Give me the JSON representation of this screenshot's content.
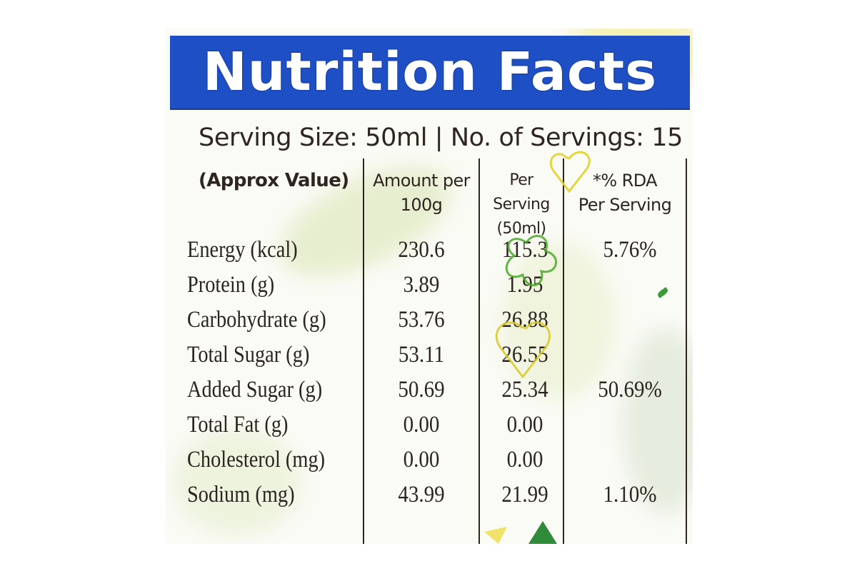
{
  "header": {
    "title": "Nutrition Facts"
  },
  "serving_line": "Serving Size: 50ml | No. of Servings: 15",
  "columns": [
    {
      "line1": "(Approx Value)",
      "line2": ""
    },
    {
      "line1": "Amount per",
      "line2": "100g"
    },
    {
      "line1": "Per Serving",
      "line2": "(50ml)"
    },
    {
      "line1": "*% RDA",
      "line2": "Per Serving"
    }
  ],
  "rows": [
    {
      "name": "Energy (kcal)",
      "per_100g": "230.6",
      "per_serving": "115.3",
      "rda": "5.76%"
    },
    {
      "name": "Protein (g)",
      "per_100g": "3.89",
      "per_serving": "1.95",
      "rda": ""
    },
    {
      "name": "Carbohydrate (g)",
      "per_100g": "53.76",
      "per_serving": "26.88",
      "rda": ""
    },
    {
      "name": "Total Sugar (g)",
      "per_100g": "53.11",
      "per_serving": "26.55",
      "rda": ""
    },
    {
      "name": "Added Sugar (g)",
      "per_100g": "50.69",
      "per_serving": "25.34",
      "rda": "50.69%"
    },
    {
      "name": "Total Fat (g)",
      "per_100g": "0.00",
      "per_serving": "0.00",
      "rda": ""
    },
    {
      "name": "Cholesterol (mg)",
      "per_100g": "0.00",
      "per_serving": "0.00",
      "rda": ""
    },
    {
      "name": "Sodium (mg)",
      "per_100g": "43.99",
      "per_serving": "21.99",
      "rda": "1.10%"
    }
  ]
}
